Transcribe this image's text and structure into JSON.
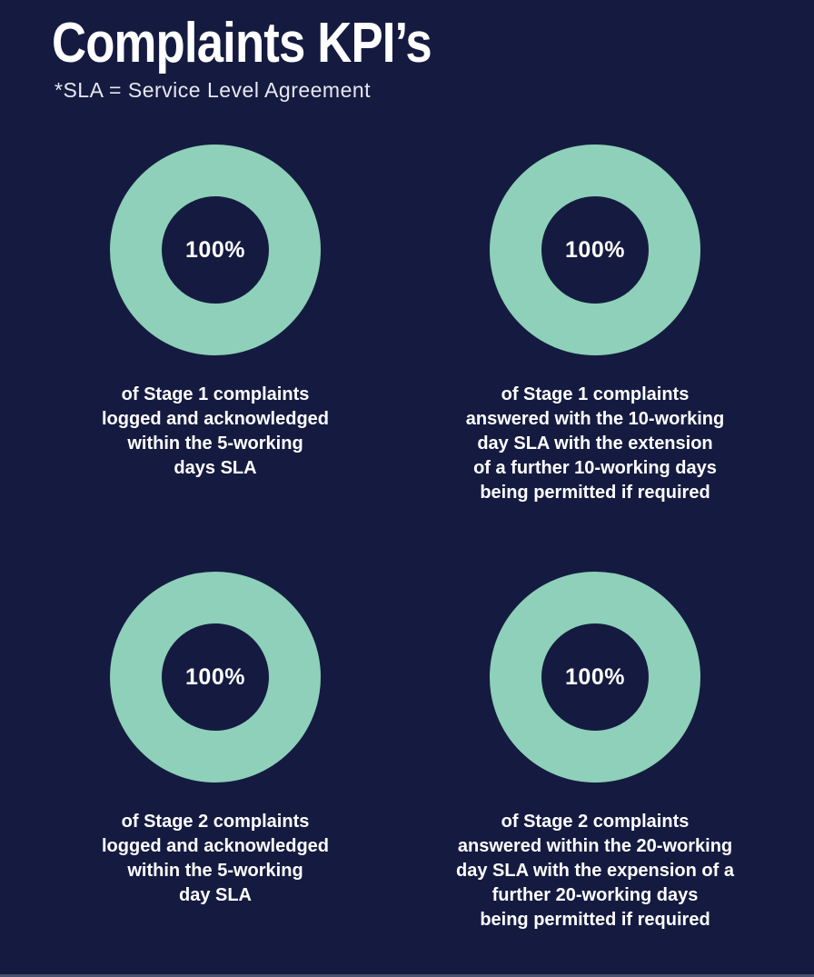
{
  "page": {
    "background_color": "#151B40",
    "accent_color": "#8ED0B9",
    "text_color": "#FFFFFF",
    "footer_strip_color": "#4A5170"
  },
  "header": {
    "title": "Complaints KPI’s",
    "subtitle": "*SLA = Service Level Agreement"
  },
  "kpis": [
    {
      "value_label": "100%",
      "caption": "of Stage 1 complaints\nlogged and acknowledged\nwithin the 5-working\ndays SLA"
    },
    {
      "value_label": "100%",
      "caption": "of Stage 1 complaints\nanswered with the 10-working\nday SLA with the extension\nof a further 10-working days\nbeing permitted if required"
    },
    {
      "value_label": "100%",
      "caption": "of Stage 2 complaints\nlogged and acknowledged\nwithin the 5-working\nday SLA"
    },
    {
      "value_label": "100%",
      "caption": "of Stage 2 complaints\nanswered within the 20-working\nday SLA with the expension of a\nfurther 20-working days\nbeing permitted if required"
    }
  ],
  "chart_data": [
    {
      "type": "pie",
      "subtype": "donut",
      "values": [
        100
      ],
      "labels": [
        "100%"
      ],
      "center_label": "100%",
      "caption": "of Stage 1 complaints logged and acknowledged within the 5-working days SLA",
      "colors": [
        "#8ED0B9"
      ],
      "hole_color": "#151B40"
    },
    {
      "type": "pie",
      "subtype": "donut",
      "values": [
        100
      ],
      "labels": [
        "100%"
      ],
      "center_label": "100%",
      "caption": "of Stage 1 complaints answered with the 10-working day SLA with the extension of a further 10-working days being permitted if required",
      "colors": [
        "#8ED0B9"
      ],
      "hole_color": "#151B40"
    },
    {
      "type": "pie",
      "subtype": "donut",
      "values": [
        100
      ],
      "labels": [
        "100%"
      ],
      "center_label": "100%",
      "caption": "of Stage 2 complaints logged and acknowledged within the 5-working day SLA",
      "colors": [
        "#8ED0B9"
      ],
      "hole_color": "#151B40"
    },
    {
      "type": "pie",
      "subtype": "donut",
      "values": [
        100
      ],
      "labels": [
        "100%"
      ],
      "center_label": "100%",
      "caption": "of Stage 2 complaints answered within the 20-working day SLA with the expension of a further 20-working days being permitted if required",
      "colors": [
        "#8ED0B9"
      ],
      "hole_color": "#151B40"
    }
  ]
}
